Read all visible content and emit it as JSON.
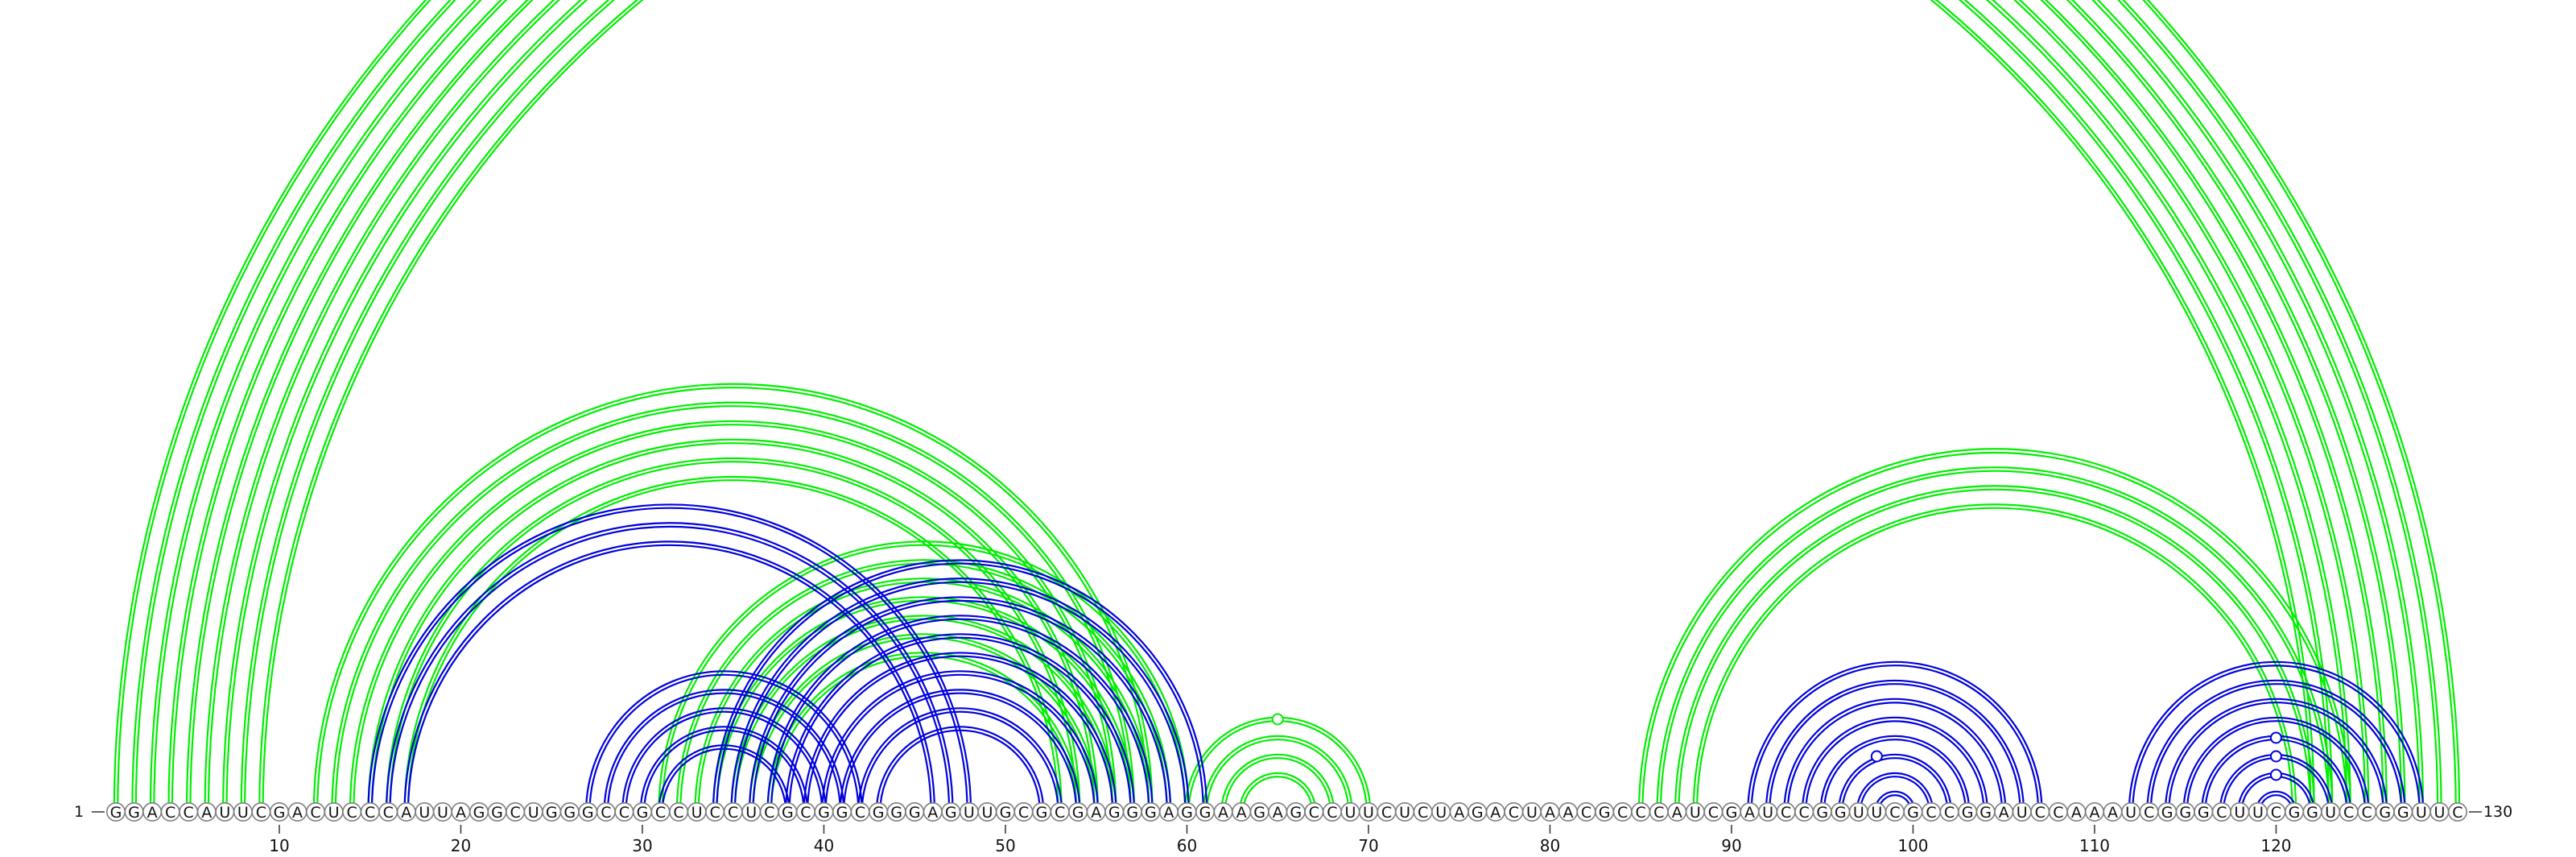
{
  "sequence": "GGACCAUUCGACUCCCAUUAGGCUGGGCCGCCUCCUCGCGGCGGGAGUUGCGCGAGGGAGGAAGAGCCUUCUCUAGACUAACGCCCAUCGAUCCGGUUCGCCGGAUCCAAAUCGGGCUUCGGUCCGGUUC",
  "start_label": "1",
  "end_label": "130",
  "ticks": [
    10,
    20,
    30,
    40,
    50,
    60,
    70,
    80,
    90,
    100,
    110,
    120
  ],
  "colors": {
    "green": "#00ee00",
    "blue": "#0000dd"
  },
  "arc_groups": [
    {
      "color": "green",
      "markers": [
        [
          1,
          130
        ]
      ],
      "pairs": [
        [
          1,
          130
        ],
        [
          2,
          129
        ],
        [
          3,
          128
        ],
        [
          4,
          127
        ],
        [
          5,
          126
        ],
        [
          6,
          125
        ],
        [
          7,
          124
        ],
        [
          8,
          123
        ],
        [
          9,
          122
        ]
      ]
    },
    {
      "color": "green",
      "markers": [
        [
          60,
          70
        ]
      ],
      "pairs": [
        [
          60,
          70
        ],
        [
          61,
          69
        ],
        [
          62,
          68
        ],
        [
          63,
          67
        ]
      ]
    },
    {
      "color": "green",
      "markers": [],
      "pairs": [
        [
          85,
          124
        ],
        [
          86,
          123
        ],
        [
          87,
          122
        ],
        [
          88,
          121
        ]
      ]
    },
    {
      "color": "green",
      "markers": [],
      "pairs": [
        [
          12,
          58
        ],
        [
          13,
          57
        ],
        [
          14,
          56
        ],
        [
          15,
          55
        ],
        [
          16,
          54
        ],
        [
          17,
          53
        ]
      ]
    },
    {
      "color": "green",
      "markers": [],
      "pairs": [
        [
          31,
          60
        ],
        [
          32,
          59
        ],
        [
          33,
          58
        ],
        [
          34,
          57
        ],
        [
          35,
          56
        ],
        [
          36,
          55
        ],
        [
          37,
          54
        ]
      ]
    },
    {
      "color": "blue",
      "markers": [],
      "pairs": [
        [
          15,
          48
        ],
        [
          16,
          47
        ],
        [
          17,
          46
        ]
      ]
    },
    {
      "color": "blue",
      "markers": [],
      "pairs": [
        [
          27,
          42
        ],
        [
          28,
          41
        ],
        [
          29,
          40
        ],
        [
          30,
          39
        ],
        [
          31,
          38
        ]
      ]
    },
    {
      "color": "blue",
      "markers": [],
      "pairs": [
        [
          34,
          61
        ],
        [
          35,
          60
        ],
        [
          36,
          59
        ],
        [
          37,
          58
        ],
        [
          38,
          57
        ],
        [
          39,
          56
        ],
        [
          40,
          55
        ],
        [
          41,
          54
        ],
        [
          42,
          53
        ],
        [
          43,
          52
        ]
      ]
    },
    {
      "color": "blue",
      "markers": [
        [
          95,
          101
        ]
      ],
      "pairs": [
        [
          91,
          107
        ],
        [
          92,
          106
        ],
        [
          93,
          105
        ],
        [
          94,
          104
        ],
        [
          95,
          103
        ],
        [
          96,
          102
        ],
        [
          97,
          101
        ],
        [
          98,
          100
        ]
      ]
    },
    {
      "color": "blue",
      "markers": [
        [
          118,
          122
        ],
        [
          117,
          123
        ],
        [
          116,
          124
        ]
      ],
      "pairs": [
        [
          112,
          128
        ],
        [
          113,
          127
        ],
        [
          114,
          126
        ],
        [
          115,
          125
        ],
        [
          116,
          124
        ],
        [
          117,
          123
        ],
        [
          118,
          122
        ],
        [
          119,
          121
        ]
      ]
    }
  ]
}
